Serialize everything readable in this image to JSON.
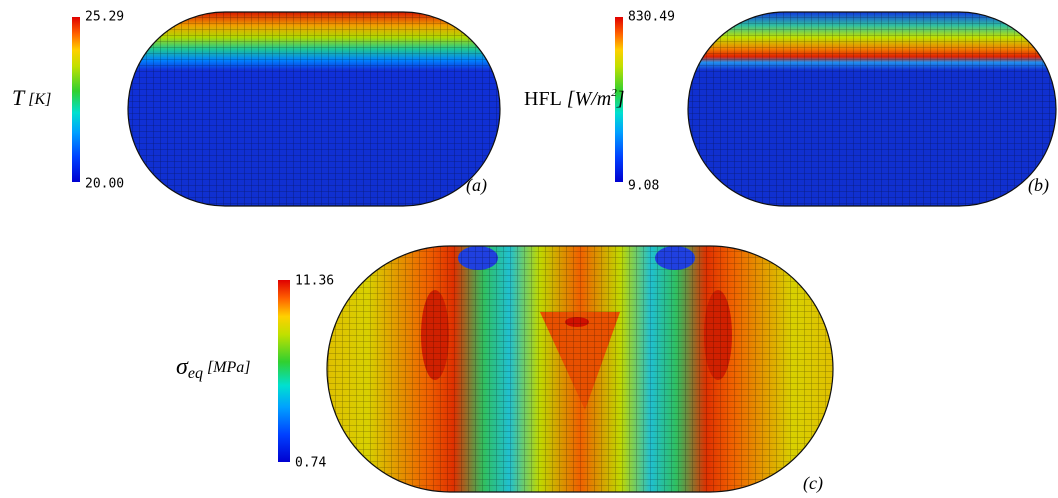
{
  "panels": [
    {
      "tag": "(a)",
      "colorbar": {
        "max": "25.29",
        "min": "20.00"
      },
      "label": [
        {
          "text": "T",
          "style": "italic"
        },
        {
          "text": " [K]",
          "style": "italic-small"
        }
      ]
    },
    {
      "tag": "(b)",
      "colorbar": {
        "max": "830.49",
        "min": "9.08"
      },
      "label": [
        {
          "text": "HFL",
          "style": "normal"
        },
        {
          "text": " [W/m",
          "style": "italic"
        },
        {
          "text": "2",
          "style": "sup"
        },
        {
          "text": "]",
          "style": "italic"
        }
      ]
    },
    {
      "tag": "(c)",
      "colorbar": {
        "max": "11.36",
        "min": "0.74"
      },
      "label": [
        {
          "text": "σ",
          "style": "italic"
        },
        {
          "text": "eq",
          "style": "sub"
        },
        {
          "text": " [MPa]",
          "style": "italic-small"
        }
      ]
    }
  ]
}
